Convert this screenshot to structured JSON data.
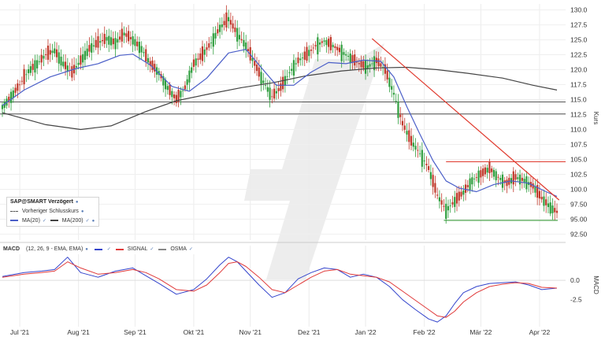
{
  "chart_data": [
    {
      "type": "candlestick",
      "instrument": "SAP@SMART Verzögert",
      "ylabel": "Kurs",
      "ylim": [
        91.5,
        131.0
      ],
      "yticks": [
        "92.50",
        "95.00",
        "97.50",
        "100.0",
        "102.5",
        "105.0",
        "107.5",
        "110.0",
        "112.5",
        "115.0",
        "117.5",
        "120.0",
        "122.5",
        "125.0",
        "127.5",
        "130.0"
      ],
      "xticks": [
        "Jul '21",
        "Aug '21",
        "Sep '21",
        "Okt '21",
        "Nov '21",
        "Dez '21",
        "Jan '22",
        "Feb '22",
        "Mär '22",
        "Apr '22"
      ],
      "price_path": [
        [
          0,
          113.8
        ],
        [
          4,
          115.5
        ],
        [
          8,
          117.5
        ],
        [
          12,
          119.8
        ],
        [
          16,
          121.0
        ],
        [
          20,
          122.5
        ],
        [
          24,
          123.2
        ],
        [
          28,
          121.0
        ],
        [
          32,
          119.5
        ],
        [
          36,
          121.5
        ],
        [
          40,
          123.5
        ],
        [
          44,
          124.5
        ],
        [
          48,
          125.2
        ],
        [
          52,
          124.5
        ],
        [
          56,
          126.0
        ],
        [
          60,
          125.0
        ],
        [
          64,
          123.5
        ],
        [
          68,
          121.0
        ],
        [
          72,
          119.5
        ],
        [
          76,
          117.0
        ],
        [
          80,
          115.0
        ],
        [
          84,
          117.0
        ],
        [
          88,
          121.0
        ],
        [
          92,
          122.5
        ],
        [
          96,
          124.5
        ],
        [
          100,
          127.0
        ],
        [
          104,
          128.5
        ],
        [
          108,
          126.0
        ],
        [
          112,
          124.0
        ],
        [
          116,
          121.0
        ],
        [
          120,
          118.0
        ],
        [
          124,
          115.5
        ],
        [
          128,
          117.0
        ],
        [
          132,
          119.5
        ],
        [
          136,
          121.5
        ],
        [
          140,
          122.5
        ],
        [
          144,
          124.0
        ],
        [
          148,
          124.8
        ],
        [
          152,
          124.0
        ],
        [
          156,
          123.0
        ],
        [
          160,
          122.0
        ],
        [
          164,
          121.0
        ],
        [
          168,
          120.5
        ],
        [
          172,
          121.5
        ],
        [
          176,
          120.0
        ],
        [
          180,
          116.0
        ],
        [
          184,
          111.0
        ],
        [
          188,
          108.0
        ],
        [
          192,
          106.0
        ],
        [
          196,
          103.5
        ],
        [
          200,
          99.0
        ],
        [
          204,
          96.5
        ],
        [
          208,
          98.0
        ],
        [
          212,
          99.5
        ],
        [
          216,
          101.5
        ],
        [
          220,
          102.5
        ],
        [
          224,
          103.5
        ],
        [
          228,
          102.0
        ],
        [
          232,
          101.0
        ],
        [
          236,
          102.0
        ],
        [
          240,
          101.5
        ],
        [
          244,
          100.5
        ],
        [
          248,
          98.5
        ],
        [
          252,
          97.0
        ],
        [
          255,
          96.2
        ]
      ],
      "ma20": [
        [
          0,
          114.0
        ],
        [
          10,
          116.6
        ],
        [
          22,
          118.8
        ],
        [
          34,
          120.2
        ],
        [
          44,
          121.0
        ],
        [
          54,
          122.4
        ],
        [
          60,
          122.6
        ],
        [
          68,
          120.8
        ],
        [
          78,
          117.2
        ],
        [
          86,
          116.4
        ],
        [
          94,
          118.6
        ],
        [
          104,
          122.8
        ],
        [
          112,
          123.4
        ],
        [
          118,
          120.8
        ],
        [
          126,
          117.4
        ],
        [
          134,
          117.4
        ],
        [
          142,
          119.6
        ],
        [
          150,
          121.2
        ],
        [
          158,
          121.0
        ],
        [
          166,
          121.6
        ],
        [
          174,
          121.4
        ],
        [
          180,
          118.8
        ],
        [
          186,
          113.8
        ],
        [
          192,
          109.2
        ],
        [
          198,
          104.8
        ],
        [
          204,
          101.4
        ],
        [
          210,
          100.2
        ],
        [
          218,
          99.6
        ],
        [
          226,
          100.8
        ],
        [
          234,
          101.4
        ],
        [
          242,
          101.0
        ],
        [
          250,
          99.6
        ],
        [
          255,
          98.8
        ]
      ],
      "ma200": [
        [
          0,
          112.8
        ],
        [
          20,
          110.8
        ],
        [
          36,
          110.0
        ],
        [
          50,
          110.6
        ],
        [
          66,
          113.0
        ],
        [
          80,
          114.8
        ],
        [
          96,
          116.0
        ],
        [
          110,
          117.0
        ],
        [
          124,
          117.8
        ],
        [
          140,
          119.0
        ],
        [
          156,
          119.8
        ],
        [
          172,
          120.3
        ],
        [
          186,
          120.4
        ],
        [
          200,
          120.0
        ],
        [
          214,
          119.4
        ],
        [
          230,
          118.6
        ],
        [
          244,
          117.4
        ],
        [
          255,
          116.6
        ]
      ],
      "horizontal_levels": [
        114.6,
        112.6
      ],
      "support_level": 94.8,
      "resistance_level": 104.6,
      "downtrend_line": [
        [
          170,
          125.2
        ],
        [
          256,
          98.2
        ]
      ],
      "legend": {
        "title": "SAP@SMART Verzögert",
        "prev_close": "Vorheriger Schlusskurs",
        "ma20": "MA(20)",
        "ma200": "MA(200)"
      },
      "colors": {
        "up": "#2f9e3e",
        "down": "#c0392b",
        "ma20": "#4b5fc8",
        "ma200": "#444444",
        "support": "#3a9a3a",
        "trend": "#e03a2e"
      }
    },
    {
      "type": "line",
      "title": "MACD",
      "params": "(12, 26, 9 - EMA, EMA)",
      "ylabel": "MACD",
      "ylim": [
        -6.0,
        4.5
      ],
      "yticks": [
        "0.0",
        "-2.5"
      ],
      "series": [
        {
          "name": "MACD",
          "color": "#3344cc",
          "points": [
            [
              0,
              0.5
            ],
            [
              10,
              1.0
            ],
            [
              18,
              1.2
            ],
            [
              24,
              1.4
            ],
            [
              30,
              3.0
            ],
            [
              36,
              1.0
            ],
            [
              44,
              0.4
            ],
            [
              52,
              1.2
            ],
            [
              60,
              1.6
            ],
            [
              66,
              0.6
            ],
            [
              72,
              -0.4
            ],
            [
              80,
              -1.8
            ],
            [
              88,
              -1.2
            ],
            [
              94,
              0.2
            ],
            [
              100,
              2.0
            ],
            [
              104,
              3.0
            ],
            [
              108,
              2.4
            ],
            [
              112,
              1.2
            ],
            [
              118,
              -0.6
            ],
            [
              124,
              -2.2
            ],
            [
              130,
              -1.6
            ],
            [
              136,
              0.2
            ],
            [
              142,
              1.0
            ],
            [
              148,
              1.6
            ],
            [
              154,
              1.4
            ],
            [
              160,
              0.4
            ],
            [
              166,
              0.8
            ],
            [
              172,
              0.4
            ],
            [
              178,
              -0.8
            ],
            [
              184,
              -2.5
            ],
            [
              190,
              -3.8
            ],
            [
              196,
              -5.0
            ],
            [
              200,
              -5.4
            ],
            [
              204,
              -4.6
            ],
            [
              208,
              -3.0
            ],
            [
              212,
              -1.6
            ],
            [
              218,
              -0.8
            ],
            [
              224,
              -0.4
            ],
            [
              230,
              -0.3
            ],
            [
              236,
              -0.2
            ],
            [
              242,
              -0.6
            ],
            [
              248,
              -1.2
            ],
            [
              255,
              -1.0
            ]
          ]
        },
        {
          "name": "SIGNAL",
          "color": "#e03a3a",
          "points": [
            [
              0,
              0.4
            ],
            [
              10,
              0.8
            ],
            [
              18,
              1.0
            ],
            [
              24,
              1.2
            ],
            [
              30,
              2.4
            ],
            [
              36,
              1.6
            ],
            [
              44,
              0.8
            ],
            [
              52,
              1.0
            ],
            [
              60,
              1.4
            ],
            [
              66,
              1.0
            ],
            [
              72,
              0.2
            ],
            [
              80,
              -1.2
            ],
            [
              88,
              -1.4
            ],
            [
              94,
              -0.6
            ],
            [
              100,
              1.0
            ],
            [
              104,
              2.2
            ],
            [
              108,
              2.4
            ],
            [
              112,
              1.8
            ],
            [
              118,
              0.4
            ],
            [
              124,
              -1.2
            ],
            [
              130,
              -1.6
            ],
            [
              136,
              -0.6
            ],
            [
              142,
              0.4
            ],
            [
              148,
              1.2
            ],
            [
              154,
              1.4
            ],
            [
              160,
              0.8
            ],
            [
              166,
              0.6
            ],
            [
              172,
              0.4
            ],
            [
              178,
              -0.2
            ],
            [
              184,
              -1.4
            ],
            [
              190,
              -2.6
            ],
            [
              196,
              -3.8
            ],
            [
              200,
              -4.6
            ],
            [
              204,
              -4.8
            ],
            [
              208,
              -4.0
            ],
            [
              212,
              -2.8
            ],
            [
              218,
              -1.6
            ],
            [
              224,
              -0.8
            ],
            [
              230,
              -0.5
            ],
            [
              236,
              -0.3
            ],
            [
              242,
              -0.4
            ],
            [
              248,
              -0.9
            ],
            [
              255,
              -1.0
            ]
          ]
        },
        {
          "name": "OSMA",
          "color": "#888888",
          "points": []
        }
      ],
      "legend_labels": {
        "macd": "MACD",
        "signal": "SIGNAL",
        "osma": "OSMA"
      }
    }
  ]
}
